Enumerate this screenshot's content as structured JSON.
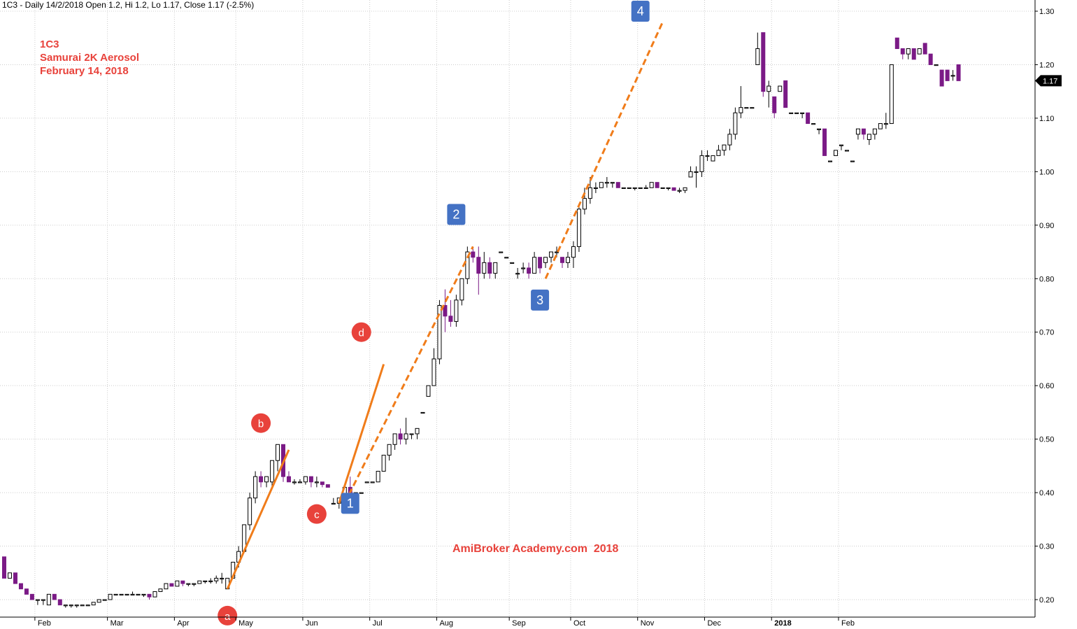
{
  "header": {
    "text": "1C3 - Daily 14/2/2018 Open 1.2, Hi 1.2, Lo 1.17, Close 1.17 (-2.5%)"
  },
  "notes": {
    "symbol": "1C3",
    "company": "Samurai 2K Aerosol",
    "date": "February 14, 2018"
  },
  "watermark": "AmiBroker Academy.com  2018",
  "chart_data": {
    "type": "candlestick",
    "ylim": [
      0.16,
      1.31
    ],
    "y_ticks": [
      "1.30",
      "1.20",
      "1.10",
      "1.00",
      "0.90",
      "0.80",
      "0.70",
      "0.60",
      "0.50",
      "0.40",
      "0.30",
      "0.20"
    ],
    "x_labels": [
      "Feb",
      "Mar",
      "Apr",
      "May",
      "Jun",
      "Jul",
      "Aug",
      "Sep",
      "Oct",
      "Nov",
      "Dec",
      "2018",
      "Feb"
    ],
    "last_price_label": "1.17",
    "colors": {
      "up": "#ffffff",
      "down": "#7b1a86",
      "trend": "#f07c1a",
      "label_red": "#e8423b",
      "label_blue": "#4472c4",
      "grid": "#cccccc"
    },
    "series": [
      [
        0.28,
        0.28,
        0.24,
        0.24
      ],
      [
        0.24,
        0.25,
        0.24,
        0.25
      ],
      [
        0.25,
        0.25,
        0.23,
        0.23
      ],
      [
        0.23,
        0.23,
        0.22,
        0.22
      ],
      [
        0.22,
        0.22,
        0.21,
        0.21
      ],
      [
        0.21,
        0.21,
        0.2,
        0.2
      ],
      [
        0.2,
        0.2,
        0.19,
        0.2
      ],
      [
        0.2,
        0.2,
        0.19,
        0.2
      ],
      [
        0.19,
        0.21,
        0.19,
        0.21
      ],
      [
        0.21,
        0.21,
        0.2,
        0.2
      ],
      [
        0.2,
        0.2,
        0.19,
        0.19
      ],
      [
        0.19,
        0.19,
        0.185,
        0.19
      ],
      [
        0.19,
        0.19,
        0.185,
        0.19
      ],
      [
        0.19,
        0.19,
        0.185,
        0.19
      ],
      [
        0.19,
        0.19,
        0.19,
        0.19
      ],
      [
        0.19,
        0.19,
        0.19,
        0.19
      ],
      [
        0.19,
        0.195,
        0.19,
        0.195
      ],
      [
        0.195,
        0.2,
        0.195,
        0.2
      ],
      [
        0.2,
        0.2,
        0.2,
        0.2
      ],
      [
        0.2,
        0.21,
        0.2,
        0.21
      ],
      [
        0.21,
        0.21,
        0.21,
        0.21
      ],
      [
        0.21,
        0.21,
        0.21,
        0.21
      ],
      [
        0.21,
        0.21,
        0.21,
        0.21
      ],
      [
        0.21,
        0.215,
        0.21,
        0.21
      ],
      [
        0.21,
        0.21,
        0.21,
        0.21
      ],
      [
        0.21,
        0.21,
        0.205,
        0.21
      ],
      [
        0.21,
        0.21,
        0.2,
        0.205
      ],
      [
        0.205,
        0.215,
        0.205,
        0.215
      ],
      [
        0.215,
        0.22,
        0.215,
        0.22
      ],
      [
        0.22,
        0.23,
        0.22,
        0.23
      ],
      [
        0.23,
        0.23,
        0.225,
        0.225
      ],
      [
        0.225,
        0.235,
        0.225,
        0.235
      ],
      [
        0.235,
        0.235,
        0.225,
        0.23
      ],
      [
        0.23,
        0.23,
        0.225,
        0.23
      ],
      [
        0.23,
        0.23,
        0.225,
        0.23
      ],
      [
        0.23,
        0.235,
        0.23,
        0.235
      ],
      [
        0.235,
        0.235,
        0.23,
        0.235
      ],
      [
        0.235,
        0.24,
        0.23,
        0.235
      ],
      [
        0.235,
        0.245,
        0.23,
        0.24
      ],
      [
        0.24,
        0.25,
        0.23,
        0.24
      ],
      [
        0.22,
        0.24,
        0.22,
        0.24
      ],
      [
        0.24,
        0.27,
        0.24,
        0.27
      ],
      [
        0.27,
        0.3,
        0.26,
        0.29
      ],
      [
        0.29,
        0.34,
        0.29,
        0.34
      ],
      [
        0.34,
        0.4,
        0.33,
        0.39
      ],
      [
        0.39,
        0.44,
        0.38,
        0.43
      ],
      [
        0.43,
        0.44,
        0.41,
        0.42
      ],
      [
        0.42,
        0.43,
        0.41,
        0.43
      ],
      [
        0.42,
        0.46,
        0.41,
        0.46
      ],
      [
        0.46,
        0.49,
        0.44,
        0.49
      ],
      [
        0.49,
        0.49,
        0.42,
        0.43
      ],
      [
        0.43,
        0.44,
        0.42,
        0.42
      ],
      [
        0.42,
        0.425,
        0.415,
        0.42
      ],
      [
        0.42,
        0.425,
        0.42,
        0.42
      ],
      [
        0.42,
        0.43,
        0.415,
        0.43
      ],
      [
        0.43,
        0.43,
        0.41,
        0.42
      ],
      [
        0.42,
        0.43,
        0.41,
        0.42
      ],
      [
        0.42,
        0.42,
        0.41,
        0.415
      ],
      [
        0.415,
        0.415,
        0.41,
        0.41
      ],
      [
        0.38,
        0.39,
        0.38,
        0.38
      ],
      [
        0.38,
        0.39,
        0.37,
        0.39
      ],
      [
        0.39,
        0.41,
        0.39,
        0.41
      ],
      [
        0.41,
        0.43,
        0.39,
        0.4
      ],
      [
        0.4,
        0.4,
        0.4,
        0.4
      ],
      [
        0.4,
        0.4,
        0.4,
        0.4
      ],
      [
        0.42,
        0.42,
        0.42,
        0.42
      ],
      [
        0.42,
        0.42,
        0.42,
        0.42
      ],
      [
        0.42,
        0.44,
        0.42,
        0.44
      ],
      [
        0.44,
        0.47,
        0.44,
        0.47
      ],
      [
        0.47,
        0.49,
        0.46,
        0.49
      ],
      [
        0.49,
        0.51,
        0.48,
        0.51
      ],
      [
        0.51,
        0.52,
        0.49,
        0.5
      ],
      [
        0.5,
        0.54,
        0.49,
        0.51
      ],
      [
        0.51,
        0.51,
        0.5,
        0.51
      ],
      [
        0.51,
        0.52,
        0.5,
        0.52
      ],
      [
        0.55,
        0.55,
        0.55,
        0.55
      ],
      [
        0.58,
        0.6,
        0.58,
        0.6
      ],
      [
        0.6,
        0.67,
        0.6,
        0.65
      ],
      [
        0.65,
        0.76,
        0.64,
        0.75
      ],
      [
        0.75,
        0.78,
        0.7,
        0.73
      ],
      [
        0.73,
        0.76,
        0.71,
        0.72
      ],
      [
        0.72,
        0.77,
        0.71,
        0.76
      ],
      [
        0.76,
        0.8,
        0.75,
        0.8
      ],
      [
        0.8,
        0.86,
        0.79,
        0.85
      ],
      [
        0.85,
        0.86,
        0.83,
        0.84
      ],
      [
        0.84,
        0.86,
        0.77,
        0.81
      ],
      [
        0.81,
        0.85,
        0.8,
        0.83
      ],
      [
        0.83,
        0.84,
        0.8,
        0.81
      ],
      [
        0.81,
        0.83,
        0.8,
        0.83
      ],
      [
        0.85,
        0.85,
        0.85,
        0.85
      ],
      [
        0.84,
        0.84,
        0.84,
        0.84
      ],
      [
        0.83,
        0.83,
        0.83,
        0.83
      ],
      [
        0.81,
        0.82,
        0.8,
        0.81
      ],
      [
        0.82,
        0.83,
        0.81,
        0.82
      ],
      [
        0.82,
        0.83,
        0.8,
        0.81
      ],
      [
        0.81,
        0.85,
        0.81,
        0.84
      ],
      [
        0.84,
        0.84,
        0.81,
        0.82
      ],
      [
        0.83,
        0.84,
        0.82,
        0.84
      ],
      [
        0.84,
        0.85,
        0.83,
        0.85
      ],
      [
        0.85,
        0.86,
        0.84,
        0.85
      ],
      [
        0.84,
        0.84,
        0.82,
        0.83
      ],
      [
        0.83,
        0.85,
        0.82,
        0.84
      ],
      [
        0.84,
        0.87,
        0.82,
        0.86
      ],
      [
        0.86,
        0.94,
        0.85,
        0.93
      ],
      [
        0.93,
        0.97,
        0.92,
        0.95
      ],
      [
        0.95,
        0.99,
        0.94,
        0.97
      ],
      [
        0.97,
        0.98,
        0.96,
        0.97
      ],
      [
        0.97,
        0.98,
        0.97,
        0.98
      ],
      [
        0.98,
        0.99,
        0.97,
        0.98
      ],
      [
        0.98,
        0.98,
        0.97,
        0.98
      ],
      [
        0.98,
        0.98,
        0.97,
        0.97
      ],
      [
        0.97,
        0.97,
        0.97,
        0.97
      ],
      [
        0.97,
        0.97,
        0.97,
        0.97
      ],
      [
        0.97,
        0.97,
        0.965,
        0.97
      ],
      [
        0.97,
        0.97,
        0.97,
        0.97
      ],
      [
        0.97,
        0.975,
        0.97,
        0.97
      ],
      [
        0.97,
        0.98,
        0.97,
        0.98
      ],
      [
        0.98,
        0.98,
        0.97,
        0.97
      ],
      [
        0.97,
        0.97,
        0.97,
        0.97
      ],
      [
        0.97,
        0.97,
        0.965,
        0.97
      ],
      [
        0.97,
        0.97,
        0.965,
        0.965
      ],
      [
        0.965,
        0.97,
        0.96,
        0.965
      ],
      [
        0.965,
        0.97,
        0.96,
        0.97
      ],
      [
        0.99,
        1.01,
        0.99,
        1.0
      ],
      [
        1.0,
        1.01,
        0.97,
        1.0
      ],
      [
        1.0,
        1.04,
        0.99,
        1.03
      ],
      [
        1.03,
        1.04,
        1.02,
        1.03
      ],
      [
        1.02,
        1.03,
        1.02,
        1.03
      ],
      [
        1.03,
        1.05,
        1.03,
        1.04
      ],
      [
        1.04,
        1.05,
        1.03,
        1.05
      ],
      [
        1.05,
        1.08,
        1.04,
        1.07
      ],
      [
        1.07,
        1.12,
        1.06,
        1.11
      ],
      [
        1.11,
        1.16,
        1.1,
        1.12
      ],
      [
        1.12,
        1.12,
        1.12,
        1.12
      ],
      [
        1.12,
        1.12,
        1.12,
        1.12
      ],
      [
        1.2,
        1.26,
        1.2,
        1.23
      ],
      [
        1.26,
        1.26,
        1.14,
        1.15
      ],
      [
        1.15,
        1.17,
        1.12,
        1.16
      ],
      [
        1.14,
        1.14,
        1.1,
        1.11
      ],
      [
        1.15,
        1.16,
        1.15,
        1.16
      ],
      [
        1.17,
        1.17,
        1.12,
        1.12
      ],
      [
        1.11,
        1.11,
        1.11,
        1.11
      ],
      [
        1.11,
        1.11,
        1.11,
        1.11
      ],
      [
        1.11,
        1.11,
        1.1,
        1.11
      ],
      [
        1.11,
        1.11,
        1.09,
        1.09
      ],
      [
        1.09,
        1.09,
        1.09,
        1.09
      ],
      [
        1.08,
        1.08,
        1.07,
        1.08
      ],
      [
        1.08,
        1.08,
        1.03,
        1.03
      ],
      [
        1.02,
        1.02,
        1.02,
        1.02
      ],
      [
        1.03,
        1.04,
        1.03,
        1.04
      ],
      [
        1.05,
        1.05,
        1.04,
        1.05
      ],
      [
        1.04,
        1.04,
        1.04,
        1.04
      ],
      [
        1.02,
        1.02,
        1.02,
        1.02
      ],
      [
        1.07,
        1.08,
        1.06,
        1.08
      ],
      [
        1.08,
        1.08,
        1.06,
        1.07
      ],
      [
        1.06,
        1.07,
        1.05,
        1.07
      ],
      [
        1.07,
        1.08,
        1.06,
        1.08
      ],
      [
        1.08,
        1.09,
        1.08,
        1.09
      ],
      [
        1.09,
        1.11,
        1.08,
        1.09
      ],
      [
        1.09,
        1.2,
        1.09,
        1.2
      ],
      [
        1.25,
        1.25,
        1.23,
        1.23
      ],
      [
        1.23,
        1.23,
        1.21,
        1.22
      ],
      [
        1.22,
        1.23,
        1.21,
        1.23
      ],
      [
        1.23,
        1.23,
        1.21,
        1.21
      ],
      [
        1.22,
        1.23,
        1.22,
        1.23
      ],
      [
        1.24,
        1.24,
        1.22,
        1.22
      ],
      [
        1.22,
        1.22,
        1.2,
        1.2
      ],
      [
        1.2,
        1.2,
        1.2,
        1.2
      ],
      [
        1.19,
        1.19,
        1.16,
        1.16
      ],
      [
        1.19,
        1.19,
        1.17,
        1.17
      ],
      [
        1.18,
        1.19,
        1.17,
        1.18
      ],
      [
        1.2,
        1.2,
        1.17,
        1.17
      ]
    ],
    "trendlines": [
      {
        "style": "solid",
        "points": [
          [
            40,
            0.22
          ],
          [
            51,
            0.48
          ]
        ]
      },
      {
        "style": "solid",
        "points": [
          [
            60,
            0.38
          ],
          [
            68,
            0.64
          ]
        ]
      },
      {
        "style": "dashed",
        "points": [
          [
            61,
            0.38
          ],
          [
            84,
            0.86
          ]
        ]
      },
      {
        "style": "dashed",
        "points": [
          [
            97,
            0.8
          ],
          [
            118,
            1.28
          ]
        ]
      }
    ],
    "markers": [
      {
        "text": "a",
        "kind": "circle",
        "i": 40,
        "y": 0.17
      },
      {
        "text": "b",
        "kind": "circle",
        "i": 46,
        "y": 0.53
      },
      {
        "text": "c",
        "kind": "circle",
        "i": 56,
        "y": 0.36
      },
      {
        "text": "d",
        "kind": "circle",
        "i": 64,
        "y": 0.7
      },
      {
        "text": "1",
        "kind": "square",
        "i": 62,
        "y": 0.38
      },
      {
        "text": "2",
        "kind": "square",
        "i": 81,
        "y": 0.92
      },
      {
        "text": "3",
        "kind": "square",
        "i": 96,
        "y": 0.76
      },
      {
        "text": "4",
        "kind": "square",
        "i": 114,
        "y": 1.3
      }
    ]
  }
}
